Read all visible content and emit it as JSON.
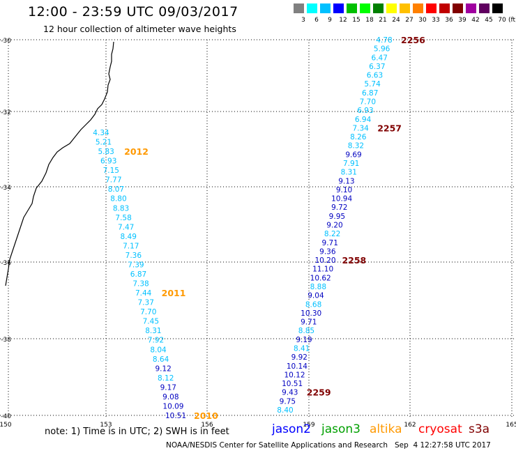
{
  "title": "12:00 - 23:59 UTC 09/03/2017",
  "subtitle": "12 hour collection of altimeter wave heights",
  "legend": {
    "unit": "(ft)",
    "labels": [
      "3",
      "6",
      "9",
      "12",
      "15",
      "18",
      "21",
      "24",
      "27",
      "30",
      "33",
      "36",
      "39",
      "42",
      "45",
      "70"
    ],
    "colors": [
      "#808080",
      "#00ffff",
      "#00c0ff",
      "#0000ff",
      "#00c000",
      "#00ff00",
      "#008000",
      "#ffff00",
      "#ffc000",
      "#ff8000",
      "#ff0000",
      "#c00000",
      "#800000",
      "#a000a0",
      "#600060",
      "#000000"
    ]
  },
  "axes": {
    "lat_labels": [
      "-30",
      "-32",
      "-34",
      "-36",
      "-38",
      "-40"
    ],
    "lon_labels": [
      "150",
      "153",
      "156",
      "159",
      "162",
      "165"
    ]
  },
  "tracks": {
    "east": {
      "values": [
        "4.78",
        "5.96",
        "6.47",
        "6.37",
        "6.63",
        "5.74",
        "6.87",
        "7.70",
        "6.93",
        "6.94",
        "7.34",
        "8.26",
        "8.32",
        "9.69",
        "7.91",
        "8.31",
        "9.13",
        "9.10",
        "10.94",
        "9.72",
        "9.95",
        "9.20",
        "8.22",
        "9.71",
        "9.36",
        "10.20",
        "11.10",
        "10.62",
        "8.88",
        "9.04",
        "8.68",
        "10.30",
        "9.71",
        "8.85",
        "9.19",
        "8.41",
        "9.92",
        "10.14",
        "10.12",
        "10.51",
        "9.43",
        "9.75",
        "8.40"
      ],
      "colors": [
        "#00c0ff",
        "#00c0ff",
        "#00c0ff",
        "#00c0ff",
        "#00c0ff",
        "#00c0ff",
        "#00c0ff",
        "#00c0ff",
        "#00c0ff",
        "#00c0ff",
        "#00c0ff",
        "#00c0ff",
        "#00c0ff",
        "#0000c0",
        "#00c0ff",
        "#00c0ff",
        "#0000c0",
        "#0000c0",
        "#0000c0",
        "#0000c0",
        "#0000c0",
        "#0000c0",
        "#00c0ff",
        "#0000c0",
        "#0000c0",
        "#0000c0",
        "#0000c0",
        "#0000c0",
        "#00c0ff",
        "#0000c0",
        "#00c0ff",
        "#0000c0",
        "#0000c0",
        "#00c0ff",
        "#0000c0",
        "#00c0ff",
        "#0000c0",
        "#0000c0",
        "#0000c0",
        "#0000c0",
        "#0000c0",
        "#0000c0",
        "#00c0ff"
      ],
      "times": [
        {
          "label": "2256",
          "index": 0
        },
        {
          "label": "2257",
          "index": 10
        },
        {
          "label": "2258",
          "index": 25
        },
        {
          "label": "2259",
          "index": 40
        }
      ]
    },
    "west": {
      "values": [
        "4.34",
        "5.21",
        "5.83",
        "6.93",
        "7.15",
        "7.77",
        "8.07",
        "8.80",
        "8.83",
        "7.58",
        "7.47",
        "8.49",
        "7.17",
        "7.36",
        "7.39",
        "6.87",
        "7.38",
        "7.44",
        "7.37",
        "7.70",
        "7.45",
        "8.31",
        "7.92",
        "8.04",
        "8.64",
        "9.12",
        "8.12",
        "9.17",
        "9.08",
        "10.09",
        "10.51"
      ],
      "colors": [
        "#00c0ff",
        "#00c0ff",
        "#00c0ff",
        "#00c0ff",
        "#00c0ff",
        "#00c0ff",
        "#00c0ff",
        "#00c0ff",
        "#00c0ff",
        "#00c0ff",
        "#00c0ff",
        "#00c0ff",
        "#00c0ff",
        "#00c0ff",
        "#00c0ff",
        "#00c0ff",
        "#00c0ff",
        "#00c0ff",
        "#00c0ff",
        "#00c0ff",
        "#00c0ff",
        "#00c0ff",
        "#00c0ff",
        "#00c0ff",
        "#00c0ff",
        "#0000c0",
        "#00c0ff",
        "#0000c0",
        "#0000c0",
        "#0000c0",
        "#0000c0"
      ],
      "times": [
        {
          "label": "2012",
          "index": 2
        },
        {
          "label": "2011",
          "index": 17
        },
        {
          "label": "2010",
          "index": 30
        }
      ]
    },
    "east_time_color": "#800000",
    "west_time_color": "#ff9900"
  },
  "footer": {
    "note": "note: 1) Time is in UTC; 2) SWH is in feet",
    "satellites": [
      {
        "name": "jason2",
        "color": "#0000ff"
      },
      {
        "name": "jason3",
        "color": "#00a000"
      },
      {
        "name": "altika",
        "color": "#ff9900"
      },
      {
        "name": "cryosat",
        "color": "#ff0000"
      },
      {
        "name": "s3a",
        "color": "#800000"
      }
    ],
    "credit": "NOAA/NESDIS Center for Satellite Applications and Research   Sep  4 12:27:58 UTC 2017"
  }
}
